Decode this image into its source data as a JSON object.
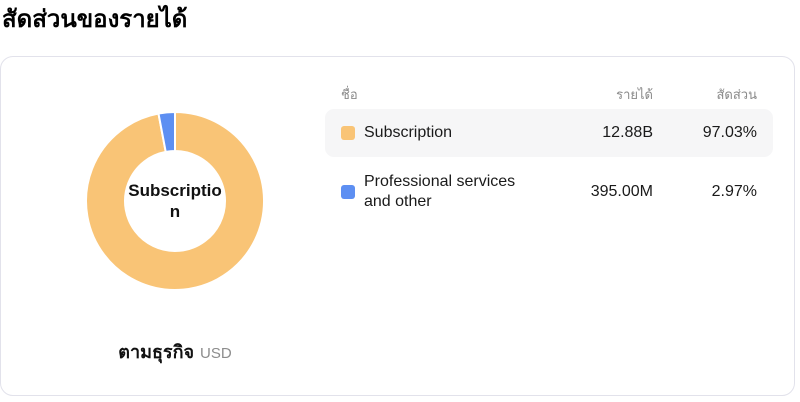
{
  "page": {
    "title": "สัดส่วนของรายได้"
  },
  "chart_data": {
    "type": "pie",
    "title": "สัดส่วนของรายได้",
    "subtype": "donut",
    "center_label": "Subscription",
    "footer_label": "ตามธุรกิจ",
    "footer_unit": "USD",
    "start_angle_deg": 0,
    "direction": "clockwise",
    "outer_radius": 89,
    "inner_radius": 50,
    "slice_gap_stroke": "#ffffff",
    "series": [
      {
        "name": "Subscription",
        "value_label": "12.88B",
        "percent": 97.03,
        "color": "#F9C476"
      },
      {
        "name": "Professional services and other",
        "value_label": "395.00M",
        "percent": 2.97,
        "color": "#5D8FF2"
      }
    ]
  },
  "table": {
    "headers": {
      "name": "ชื่อ",
      "revenue": "รายได้",
      "share": "สัดส่วน"
    },
    "rows": [
      {
        "name": "Subscription",
        "revenue": "12.88B",
        "share": "97.03%",
        "color": "#F9C476",
        "highlighted": true
      },
      {
        "name": "Professional services and other",
        "revenue": "395.00M",
        "share": "2.97%",
        "color": "#5D8FF2",
        "highlighted": false
      }
    ]
  },
  "colors": {
    "card_border": "#e2e2eb",
    "row_highlight_bg": "#f6f6f7",
    "header_text": "#8a8a8a",
    "body_text": "#1a1a1a"
  }
}
